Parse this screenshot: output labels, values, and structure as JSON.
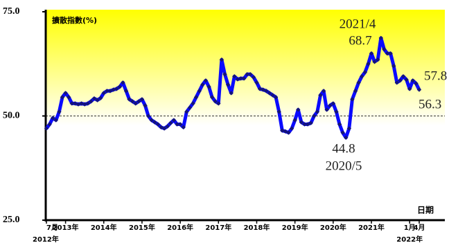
{
  "chart_data": {
    "type": "line",
    "ylabel": "擴散指數(%)",
    "xlabel": "日期",
    "categories": [
      "7月\n2012年",
      null,
      null,
      null,
      null,
      null,
      "2013年",
      null,
      null,
      null,
      null,
      null,
      null,
      null,
      null,
      null,
      null,
      null,
      "2014年",
      null,
      null,
      null,
      null,
      null,
      null,
      null,
      null,
      null,
      null,
      null,
      "2015年",
      null,
      null,
      null,
      null,
      null,
      null,
      null,
      null,
      null,
      null,
      null,
      "2016年",
      null,
      null,
      null,
      null,
      null,
      null,
      null,
      null,
      null,
      null,
      null,
      "2017年",
      null,
      null,
      null,
      null,
      null,
      null,
      null,
      null,
      null,
      null,
      null,
      "2018年",
      null,
      null,
      null,
      null,
      null,
      null,
      null,
      null,
      null,
      null,
      null,
      "2019年",
      null,
      null,
      null,
      null,
      null,
      null,
      null,
      null,
      null,
      null,
      null,
      "2020年",
      null,
      null,
      null,
      null,
      null,
      null,
      null,
      null,
      null,
      null,
      null,
      "2021年",
      null,
      null,
      null,
      null,
      null,
      null,
      null,
      null,
      null,
      null,
      null,
      "1月\n2022年",
      null,
      null,
      "4月"
    ],
    "values": [
      47.0,
      48.0,
      49.5,
      49.0,
      51.0,
      54.5,
      55.5,
      54.5,
      53.0,
      53.0,
      52.8,
      53.0,
      52.8,
      53.0,
      53.5,
      54.2,
      53.8,
      54.3,
      55.5,
      56.0,
      56.0,
      56.3,
      56.5,
      57.0,
      58.0,
      56.0,
      54.0,
      53.5,
      53.0,
      53.5,
      54.0,
      52.5,
      50.0,
      49.0,
      48.5,
      48.0,
      47.3,
      47.0,
      47.5,
      48.3,
      49.0,
      48.0,
      48.0,
      47.3,
      51.0,
      52.0,
      53.0,
      54.5,
      56.0,
      57.5,
      58.5,
      57.0,
      54.5,
      53.5,
      53.0,
      63.5,
      60.0,
      57.5,
      55.5,
      59.5,
      58.8,
      59.0,
      59.0,
      60.0,
      60.0,
      59.3,
      58.0,
      56.5,
      56.3,
      56.0,
      55.5,
      55.0,
      54.5,
      51.0,
      46.5,
      46.3,
      46.0,
      47.0,
      49.0,
      51.5,
      48.5,
      48.0,
      48.0,
      48.3,
      50.0,
      51.0,
      55.0,
      56.0,
      51.5,
      52.5,
      53.0,
      51.0,
      48.0,
      46.0,
      44.8,
      47.0,
      54.0,
      56.0,
      58.0,
      59.5,
      60.5,
      62.5,
      65.0,
      63.0,
      63.5,
      68.7,
      66.0,
      65.0,
      65.0,
      62.0,
      58.0,
      58.5,
      59.5,
      58.7,
      56.5,
      58.5,
      57.8,
      56.3
    ],
    "color": "#0a0aff",
    "marker_color": "#14147a",
    "ylim": [
      25,
      75
    ],
    "yticks": [
      {
        "value": 25,
        "label": "25.0"
      },
      {
        "value": 50,
        "label": "50.0"
      },
      {
        "value": 75,
        "label": "75.0"
      }
    ],
    "ref_line": 50,
    "annotations": [
      "2021/4",
      "2020/5"
    ]
  }
}
